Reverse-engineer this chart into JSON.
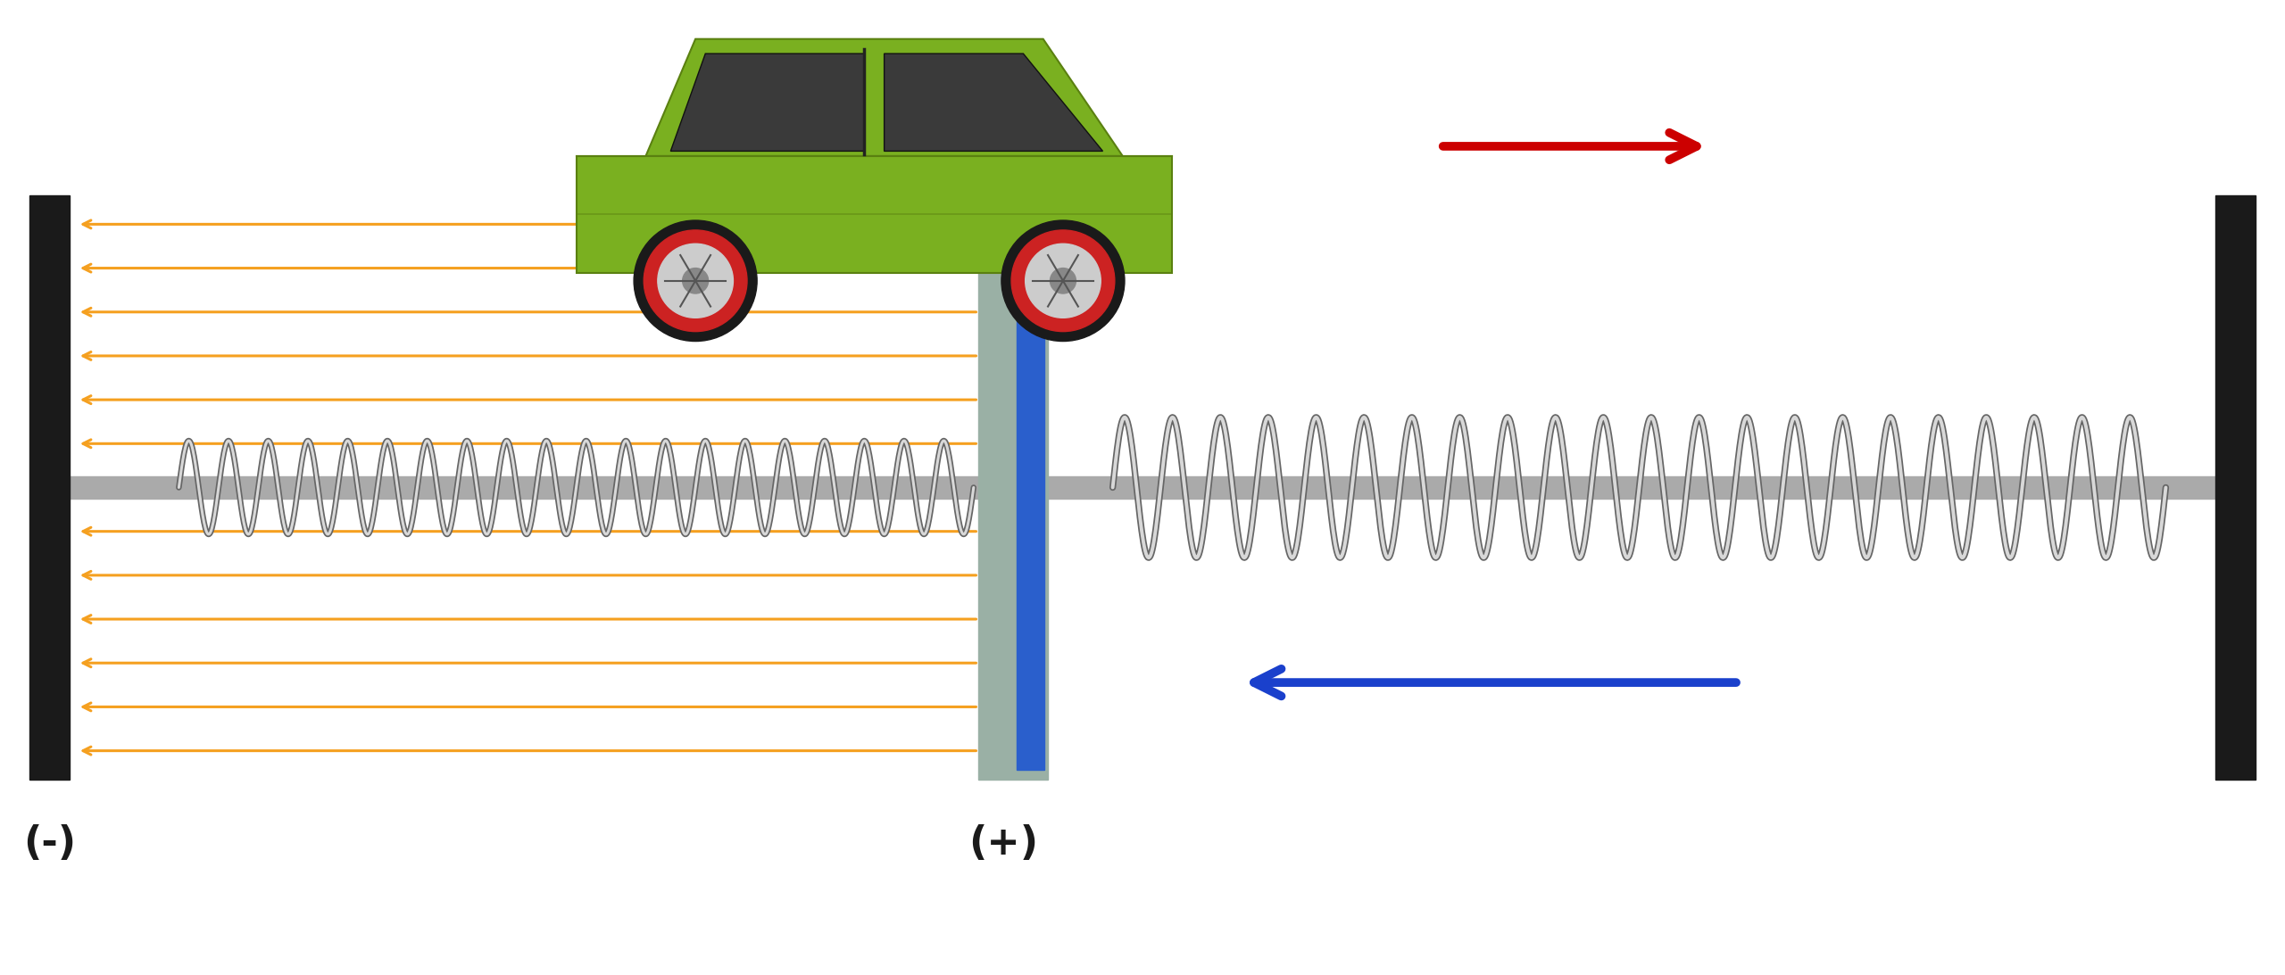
{
  "bg_color": "#ffffff",
  "left_wall_color": "#1a1a1a",
  "right_wall_color": "#1a1a1a",
  "capacitor_gray_color": "#9ab0a5",
  "capacitor_blue_color": "#2a5fcc",
  "rod_color": "#aaaaaa",
  "rod_outline_color": "#888888",
  "spring_color": "#d8d8d8",
  "spring_outline_color": "#666666",
  "arrow_orange_color": "#f5a020",
  "arrow_red_color": "#cc0000",
  "arrow_blue_color": "#1a40cc",
  "car_body_color": "#7ab020",
  "car_body_dark": "#5a8010",
  "car_window_color": "#3a3a3a",
  "car_wheel_outer": "#1a1a1a",
  "car_wheel_rim_red": "#cc2222",
  "car_wheel_rim_inner": "#cccccc",
  "car_wheel_hub": "#888888",
  "minus_label": "(-)",
  "plus_label": "(+)",
  "label_fontsize": 32,
  "figsize": [
    25.6,
    10.93
  ]
}
